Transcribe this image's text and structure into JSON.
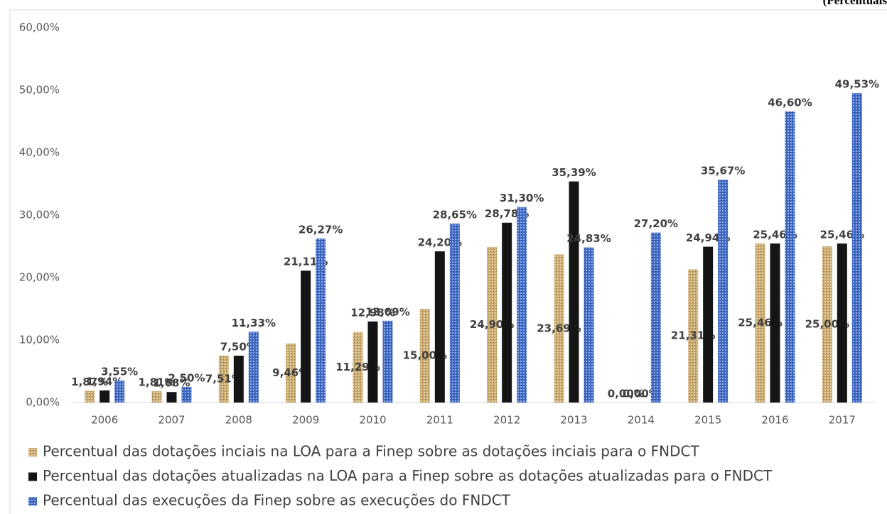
{
  "chart_data": {
    "type": "bar",
    "annotation": "(Percentuais",
    "categories": [
      "2006",
      "2007",
      "2008",
      "2009",
      "2010",
      "2011",
      "2012",
      "2013",
      "2014",
      "2015",
      "2016",
      "2017"
    ],
    "series": [
      {
        "name": "Percentual das dotações inciais na LOA para a Finep sobre as dotações inciais para o FNDCT",
        "color": "#c9a86a",
        "values": [
          1.87,
          1.81,
          7.51,
          9.46,
          11.29,
          15.0,
          24.9,
          23.69,
          0.0,
          21.31,
          25.46,
          25.0
        ],
        "value_labels": [
          "1,87%",
          "1,81%",
          "7,51%",
          "9,46%",
          "11,29%",
          "15,00%",
          "24,90%",
          "23,69%",
          "0,00%",
          "21,31%",
          "25,46%",
          "25,00%"
        ]
      },
      {
        "name": "Percentual das dotações atualizadas na LOA para a Finep sobre as dotações atualizadas para o FNDCT",
        "color": "#151515",
        "values": [
          1.94,
          1.68,
          7.5,
          21.11,
          12.98,
          24.2,
          28.78,
          35.39,
          0.0,
          24.94,
          25.46,
          25.46
        ],
        "value_labels": [
          "1,94%",
          "1,68%",
          "7,50%",
          "21,11%",
          "12,98%",
          "24,20%",
          "28,78%",
          "35,39%",
          "0,00%",
          "24,94%",
          "25,46%",
          "25,46%"
        ]
      },
      {
        "name": "Percentual das execuções da Finep sobre as execuções do FNDCT",
        "color": "#3d68c4",
        "values": [
          3.55,
          2.5,
          11.33,
          26.27,
          13.09,
          28.65,
          31.3,
          24.83,
          27.2,
          35.67,
          46.6,
          49.53
        ],
        "value_labels": [
          "3,55%",
          "2,50%",
          "11,33%",
          "26,27%",
          "13,09%",
          "28,65%",
          "31,30%",
          "24,83%",
          "27,20%",
          "35,67%",
          "46,60%",
          "49,53%"
        ]
      }
    ],
    "ylim": [
      0,
      60
    ],
    "yticks": [
      {
        "value": 0,
        "label": "0,00%"
      },
      {
        "value": 10,
        "label": "10,00%"
      },
      {
        "value": 20,
        "label": "20,00%"
      },
      {
        "value": 30,
        "label": "30,00%"
      },
      {
        "value": 40,
        "label": "40,00%"
      },
      {
        "value": 50,
        "label": "50,00%"
      },
      {
        "value": 60,
        "label": "60,00%"
      }
    ],
    "grid": false,
    "legend": "bottom"
  }
}
